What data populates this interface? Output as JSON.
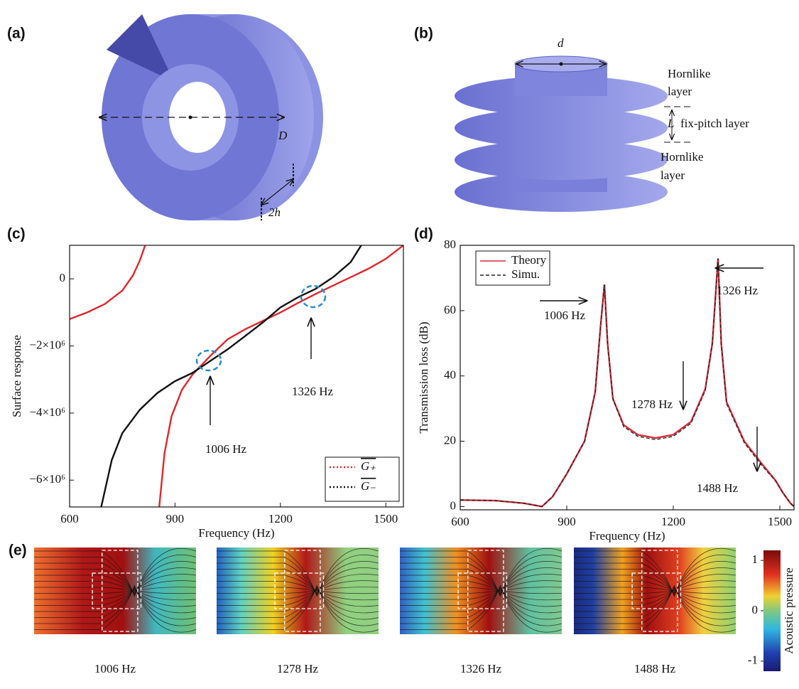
{
  "figure": {
    "a": {
      "label": "(a)",
      "dim_outer": "D",
      "dim_height": "2h"
    },
    "b": {
      "label": "(b)",
      "dim_inner": "d",
      "dim_pitch": "L",
      "top_layer": [
        "Hornlike",
        "layer"
      ],
      "middle_layer": "fix-pitch layer",
      "bottom_layer": [
        "Hornlike",
        "layer"
      ]
    },
    "e": {
      "label": "(e)",
      "frequencies": [
        "1006 Hz",
        "1278 Hz",
        "1326 Hz",
        "1488 Hz"
      ],
      "colorbar": {
        "label": "Acoustic pressure",
        "lim": [
          -1.2,
          1.2
        ],
        "ticks": [
          1,
          0,
          -1
        ]
      }
    }
  },
  "chart_data": [
    {
      "type": "line",
      "panel_label": "(c)",
      "x_label": "Frequency (Hz)",
      "y_label": "Surface response",
      "xlim": [
        600,
        1550
      ],
      "xticks": [
        600,
        900,
        1200,
        1500
      ],
      "ylim": [
        -6800000,
        1000000
      ],
      "yticks": [
        {
          "value": -6000000,
          "label": "−6×10⁶"
        },
        {
          "value": -4000000,
          "label": "−4×10⁶"
        },
        {
          "value": -2000000,
          "label": "−2×10⁶"
        },
        0
      ],
      "legend": "lower right",
      "series": [
        {
          "name": "G₊",
          "color": "#e0262b",
          "style": "dotted",
          "x": [
            600,
            650,
            700,
            750,
            780,
            800,
            815,
            830,
            855,
            870,
            890,
            920,
            950,
            1000,
            1050,
            1100,
            1150,
            1200,
            1250,
            1300,
            1350,
            1400,
            1450,
            1500,
            1550
          ],
          "values": [
            -1200000,
            -1000000,
            -750000,
            -350000,
            100000,
            550000,
            1000000,
            null,
            -6800000,
            -5200000,
            -4100000,
            -3300000,
            -2850000,
            -2300000,
            -1800000,
            -1500000,
            -1250000,
            -1000000,
            -720000,
            -450000,
            -200000,
            50000,
            300000,
            600000,
            1000000
          ]
        },
        {
          "name": "G₋",
          "color": "#111111",
          "style": "dotted",
          "x": [
            690,
            720,
            750,
            800,
            850,
            900,
            950,
            1000,
            1050,
            1100,
            1150,
            1200,
            1250,
            1300,
            1350,
            1400,
            1430
          ],
          "values": [
            -6800000,
            -5400000,
            -4600000,
            -3900000,
            -3400000,
            -3050000,
            -2800000,
            -2450000,
            -2100000,
            -1700000,
            -1300000,
            -850000,
            -550000,
            -300000,
            50000,
            500000,
            1000000
          ]
        }
      ],
      "annotations": [
        "1006 Hz",
        "1326 Hz"
      ]
    },
    {
      "type": "line",
      "panel_label": "(d)",
      "x_label": "Frequency (Hz)",
      "y_label": "Transmission loss (dB)",
      "xlim": [
        600,
        1540
      ],
      "xticks": [
        600,
        900,
        1200,
        1500
      ],
      "ylim": [
        -1,
        80
      ],
      "yticks": [
        0,
        20,
        40,
        60,
        80
      ],
      "legend": "upper left",
      "series": [
        {
          "name": "Theory",
          "color": "#d42c3a",
          "style": "solid",
          "x": [
            600,
            700,
            780,
            830,
            860,
            900,
            950,
            980,
            995,
            1006,
            1015,
            1030,
            1060,
            1100,
            1150,
            1200,
            1250,
            1290,
            1310,
            1326,
            1335,
            1350,
            1400,
            1450,
            1488,
            1510,
            1530,
            1540
          ],
          "values": [
            2,
            1.8,
            1,
            0,
            3,
            10,
            20,
            35,
            55,
            68,
            50,
            33,
            25,
            22,
            21,
            22,
            26,
            36,
            50,
            76,
            50,
            32,
            20,
            13,
            8,
            4,
            1,
            0
          ]
        },
        {
          "name": "Simu.",
          "color": "#222222",
          "style": "dashed",
          "x": [
            600,
            700,
            780,
            830,
            860,
            900,
            950,
            980,
            995,
            1006,
            1015,
            1030,
            1060,
            1100,
            1150,
            1200,
            1250,
            1290,
            1310,
            1326,
            1335,
            1350,
            1400,
            1450,
            1488,
            1510,
            1530,
            1540
          ],
          "values": [
            2,
            1.8,
            1,
            0,
            3,
            10,
            20,
            35,
            55,
            68,
            50,
            33,
            24.5,
            21.5,
            20.5,
            21.5,
            25.5,
            35.5,
            50,
            76,
            50,
            31.5,
            19.5,
            12.5,
            7.8,
            4,
            1,
            0
          ]
        }
      ],
      "annotations": [
        "1006 Hz",
        "1326 Hz",
        "1278 Hz",
        "1488 Hz"
      ]
    }
  ]
}
